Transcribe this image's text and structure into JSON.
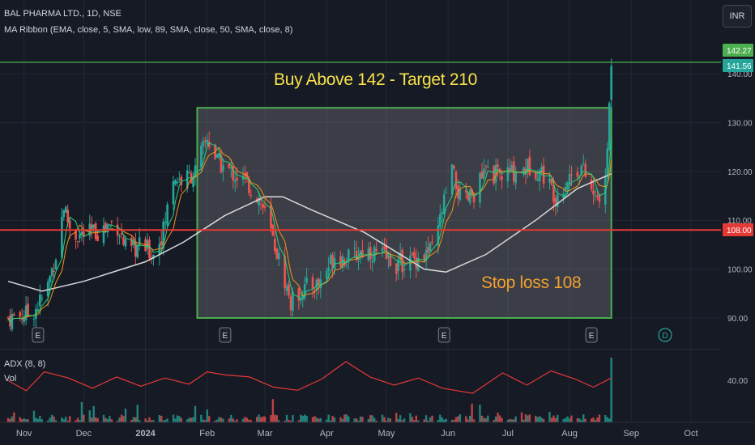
{
  "header": {
    "symbol": "BAL PHARMA LTD., 1D, NSE",
    "indicator": "MA Ribbon (EMA, close, 5, SMA, low, 89, SMA, close, 50, SMA, close, 8)",
    "adx_label": "ADX (8, 8)",
    "vol_label": "Vol",
    "currency_button": "INR"
  },
  "annotations": {
    "buy": "Buy Above 142 - Target 210",
    "stop": "Stop loss 108"
  },
  "colors": {
    "background": "#161a25",
    "grid": "#232733",
    "up_candle": "#26a69a",
    "down_candle": "#ef5350",
    "ma5": "#26d07c",
    "ma8": "#f7931a",
    "ma89": "#d9d9d9",
    "box_border": "#4caf50",
    "stop_line": "#e53935",
    "target_line": "#4caf50",
    "adx": "#e53935"
  },
  "chart_data": {
    "type": "candlestick",
    "x_axis_labels": [
      "Nov",
      "Dec",
      "2024",
      "Feb",
      "Mar",
      "Apr",
      "May",
      "Jun",
      "Jul",
      "Aug",
      "Sep",
      "Oct"
    ],
    "y_ticks": [
      90.0,
      100.0,
      110.0,
      120.0,
      130.0,
      140.0
    ],
    "y_tick_labels": [
      "90.00",
      "100.00",
      "110.00",
      "120.00",
      "130.00",
      "140.00"
    ],
    "ylim": [
      86.5,
      148
    ],
    "price_badges": [
      {
        "label": "142.27",
        "value": 142.27,
        "color": "#4caf50"
      },
      {
        "label": "141.56",
        "value": 141.56,
        "color": "#26a69a"
      },
      {
        "label": "108.00",
        "value": 108.0,
        "color": "#e53935"
      }
    ],
    "horizontal_lines": [
      {
        "name": "target",
        "value": 142.27
      },
      {
        "name": "stop loss",
        "value": 108.0
      }
    ],
    "rectangle": {
      "x_from": "2024-01-27",
      "x_to": "2024-08-22",
      "y_from": 90.0,
      "y_to": 133.0
    },
    "earnings_markers": [
      {
        "date": "2023-11-08",
        "label": "E"
      },
      {
        "date": "2024-02-10",
        "label": "E"
      },
      {
        "date": "2024-05-30",
        "label": "E"
      },
      {
        "date": "2024-08-12",
        "label": "E"
      },
      {
        "date": "2024-09-18",
        "label": "D"
      }
    ],
    "close_path": [
      [
        "2023-10-24",
        90
      ],
      [
        "2023-11-05",
        91
      ],
      [
        "2023-11-12",
        95
      ],
      [
        "2023-11-17",
        103
      ],
      [
        "2023-11-21",
        113
      ],
      [
        "2023-11-25",
        107
      ],
      [
        "2023-12-02",
        107
      ],
      [
        "2023-12-10",
        108
      ],
      [
        "2023-12-17",
        110
      ],
      [
        "2023-12-23",
        103
      ],
      [
        "2023-12-30",
        105
      ],
      [
        "2024-01-05",
        103
      ],
      [
        "2024-01-10",
        108
      ],
      [
        "2024-01-15",
        119
      ],
      [
        "2024-01-20",
        118
      ],
      [
        "2024-01-26",
        120
      ],
      [
        "2024-02-01",
        127
      ],
      [
        "2024-02-06",
        122
      ],
      [
        "2024-02-12",
        120
      ],
      [
        "2024-02-20",
        118
      ],
      [
        "2024-02-28",
        114
      ],
      [
        "2024-03-08",
        102
      ],
      [
        "2024-03-14",
        93
      ],
      [
        "2024-03-20",
        96
      ],
      [
        "2024-03-28",
        97
      ],
      [
        "2024-04-05",
        103
      ],
      [
        "2024-04-12",
        102
      ],
      [
        "2024-04-20",
        104
      ],
      [
        "2024-04-28",
        103
      ],
      [
        "2024-05-06",
        101
      ],
      [
        "2024-05-15",
        102
      ],
      [
        "2024-05-25",
        104
      ],
      [
        "2024-05-29",
        112
      ],
      [
        "2024-06-03",
        120
      ],
      [
        "2024-06-08",
        113
      ],
      [
        "2024-06-13",
        115
      ],
      [
        "2024-06-20",
        120
      ],
      [
        "2024-06-27",
        119
      ],
      [
        "2024-07-05",
        120
      ],
      [
        "2024-07-12",
        121
      ],
      [
        "2024-07-18",
        120
      ],
      [
        "2024-07-25",
        115
      ],
      [
        "2024-08-01",
        119
      ],
      [
        "2024-08-07",
        121
      ],
      [
        "2024-08-14",
        114
      ],
      [
        "2024-08-19",
        117
      ],
      [
        "2024-08-22",
        141.56
      ]
    ],
    "ma89_path": [
      [
        "2023-10-24",
        97.5
      ],
      [
        "2023-11-10",
        95.5
      ],
      [
        "2023-12-01",
        97.5
      ],
      [
        "2024-01-01",
        101.5
      ],
      [
        "2024-01-20",
        105.5
      ],
      [
        "2024-02-10",
        111
      ],
      [
        "2024-03-01",
        114.8
      ],
      [
        "2024-03-10",
        114.8
      ],
      [
        "2024-03-25",
        112
      ],
      [
        "2024-04-20",
        107.5
      ],
      [
        "2024-05-20",
        100
      ],
      [
        "2024-05-31",
        99.4
      ],
      [
        "2024-06-20",
        103
      ],
      [
        "2024-07-15",
        110
      ],
      [
        "2024-08-05",
        116.5
      ],
      [
        "2024-08-22",
        119.5
      ]
    ],
    "adx_path": [
      [
        0.0,
        0.55
      ],
      [
        0.03,
        0.35
      ],
      [
        0.06,
        0.72
      ],
      [
        0.1,
        0.6
      ],
      [
        0.14,
        0.4
      ],
      [
        0.18,
        0.62
      ],
      [
        0.22,
        0.44
      ],
      [
        0.26,
        0.6
      ],
      [
        0.3,
        0.48
      ],
      [
        0.33,
        0.72
      ],
      [
        0.36,
        0.66
      ],
      [
        0.4,
        0.62
      ],
      [
        0.44,
        0.42
      ],
      [
        0.48,
        0.36
      ],
      [
        0.52,
        0.58
      ],
      [
        0.56,
        0.92
      ],
      [
        0.6,
        0.62
      ],
      [
        0.64,
        0.46
      ],
      [
        0.68,
        0.6
      ],
      [
        0.72,
        0.4
      ],
      [
        0.77,
        0.3
      ],
      [
        0.82,
        0.7
      ],
      [
        0.86,
        0.46
      ],
      [
        0.9,
        0.74
      ],
      [
        0.94,
        0.58
      ],
      [
        0.97,
        0.42
      ],
      [
        1.0,
        0.6
      ]
    ],
    "adx_tick": {
      "label": "40.00",
      "value": 40
    }
  }
}
